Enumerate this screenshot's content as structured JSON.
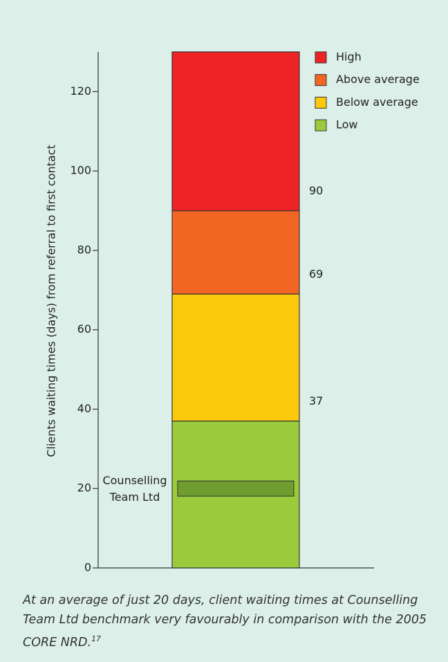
{
  "chart_data": {
    "type": "stacked_bar",
    "y_label": "Clients waiting times (days) from referral to first contact",
    "series": [
      {
        "name": "Low",
        "color": "#9bcb3c",
        "values": [
          37
        ]
      },
      {
        "name": "Below average",
        "color": "#fcc90c",
        "values": [
          32
        ]
      },
      {
        "name": "Above average",
        "color": "#f26522",
        "values": [
          21
        ]
      },
      {
        "name": "High",
        "color": "#ee2424",
        "values": [
          40
        ]
      }
    ],
    "thresholds": [
      90,
      69,
      37
    ],
    "marker": {
      "label": "Counselling Team Ltd",
      "value": 20,
      "color": "#6f9d2f"
    },
    "ylim": [
      0,
      130
    ],
    "yticks": [
      0,
      20,
      40,
      60,
      80,
      100,
      120
    ],
    "legend": "top-right",
    "caption": "At an average of just 20 days, client waiting times at Counselling Team Ltd benchmark very favourably in comparison with the 2005 CORE NRD.",
    "caption_ref": "17"
  }
}
